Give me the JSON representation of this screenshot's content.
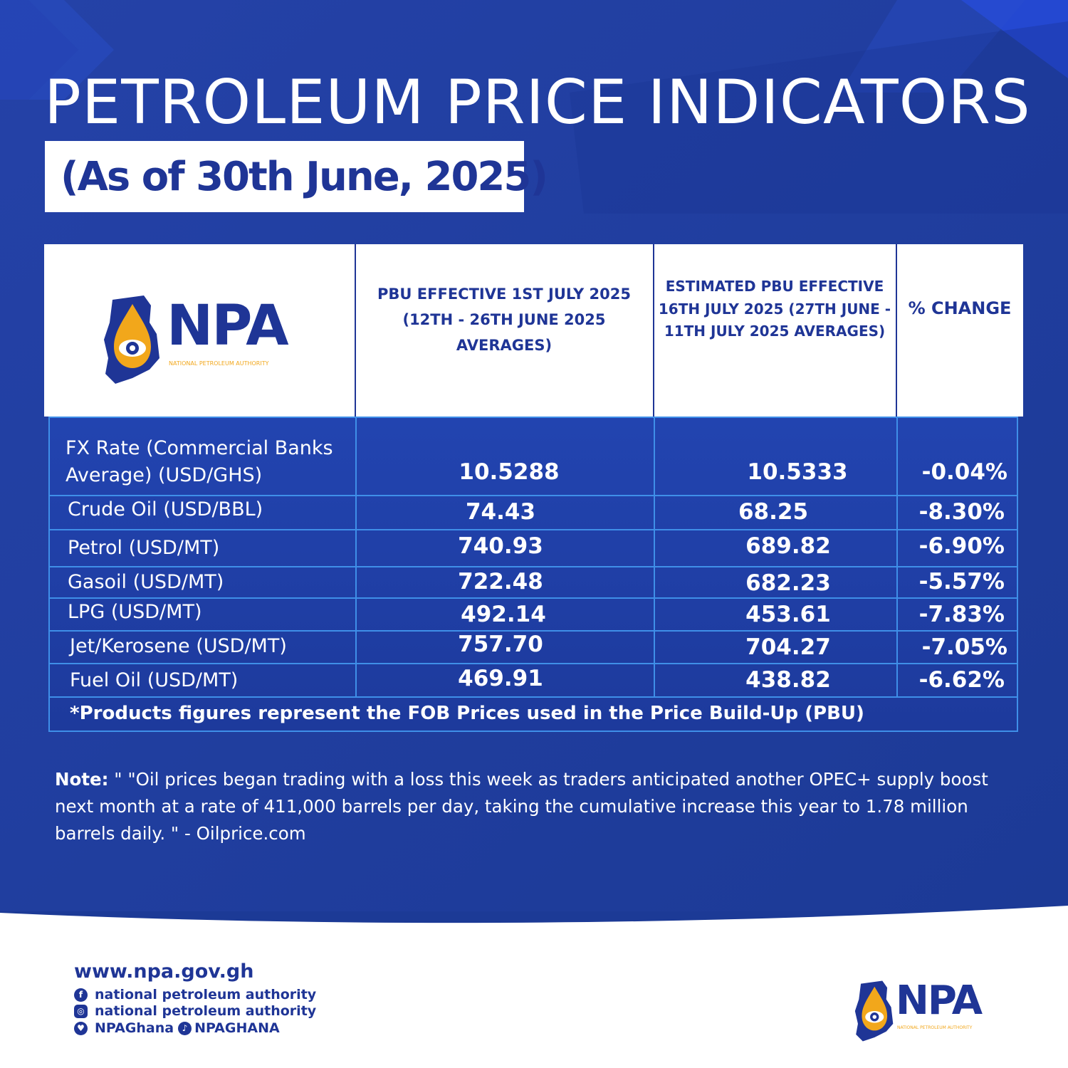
{
  "title": "PETROLEUM PRICE INDICATORS",
  "subtitle": "(As of 30th June, 2025)",
  "logo": {
    "wordmark": "NPA",
    "tagline": "NATIONAL PETROLEUM AUTHORITY"
  },
  "table": {
    "headers": [
      "PBU EFFECTIVE 1ST JULY 2025 (12TH - 26TH JUNE 2025 AVERAGES)",
      "ESTIMATED PBU EFFECTIVE 16TH JULY 2025 (27TH JUNE - 11TH JULY 2025 AVERAGES)",
      "% CHANGE"
    ],
    "rows": [
      {
        "label": "FX Rate (Commercial Banks Average) (USD/GHS)",
        "pbu": "10.5288",
        "estimated": "10.5333",
        "change": "-0.04%"
      },
      {
        "label": "Crude Oil (USD/BBL)",
        "pbu": "74.43",
        "estimated": "68.25",
        "change": "-8.30%"
      },
      {
        "label": "Petrol (USD/MT)",
        "pbu": "740.93",
        "estimated": "689.82",
        "change": "-6.90%"
      },
      {
        "label": "Gasoil (USD/MT)",
        "pbu": "722.48",
        "estimated": "682.23",
        "change": "-5.57%"
      },
      {
        "label": "LPG (USD/MT)",
        "pbu": "492.14",
        "estimated": "453.61",
        "change": "-7.83%"
      },
      {
        "label": "Jet/Kerosene (USD/MT)",
        "pbu": "757.70",
        "estimated": "704.27",
        "change": "-7.05%"
      },
      {
        "label": "Fuel Oil (USD/MT)",
        "pbu": "469.91",
        "estimated": "438.82",
        "change": "-6.62%"
      }
    ],
    "footnote": "*Products figures represent the FOB Prices used in the Price Build-Up (PBU)"
  },
  "note": {
    "label": "Note:",
    "text": " \" \"Oil prices began trading with a loss this week as traders anticipated another OPEC+ supply boost next month at a rate of 411,000 barrels per day, taking the cumulative increase this year to 1.78 million barrels daily. \" - Oilprice.com"
  },
  "footer": {
    "website": "www.npa.gov.gh",
    "facebook": "national petroleum authority",
    "instagram": "national petroleum authority",
    "twitter": "NPAGhana",
    "tiktok": "NPAGHANA"
  },
  "colors": {
    "background": "#1c3a96",
    "brand_blue": "#1f3596",
    "accent_orange": "#f2a71b",
    "grid_line": "#3f8fe8"
  }
}
